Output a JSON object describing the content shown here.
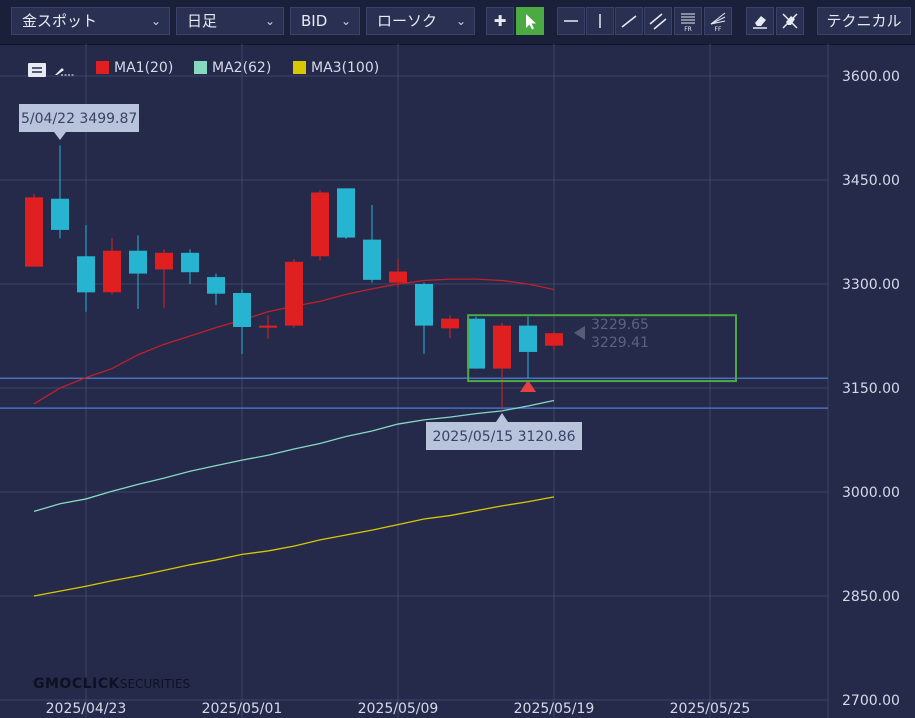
{
  "toolbar": {
    "symbol": "金スポット",
    "timeframe": "日足",
    "price_type": "BID",
    "chart_type": "ローソク",
    "technical_label": "テクニカル",
    "draw_labels": {
      "fr": "FR",
      "ff": "FF"
    }
  },
  "legend": [
    {
      "label": "MA1(20)",
      "color": "#e02020"
    },
    {
      "label": "MA2(62)",
      "color": "#86d9c0"
    },
    {
      "label": "MA3(100)",
      "color": "#d8c800"
    }
  ],
  "watermark": {
    "brand": "GMOCLICK",
    "suffix": "SECURITIES"
  },
  "colors": {
    "background": "#252a4a",
    "bull": "#e02020",
    "bear": "#27b4d1",
    "selection": "#4caa43",
    "ma1": "#c0202a",
    "ma2": "#86d9c0",
    "ma3": "#d8c800"
  },
  "chart_data": {
    "type": "candlestick",
    "yticks": [
      {
        "v": 3600,
        "label": "3600.00"
      },
      {
        "v": 3450,
        "label": "3450.00"
      },
      {
        "v": 3300,
        "label": "3300.00"
      },
      {
        "v": 3150,
        "label": "3150.00"
      },
      {
        "v": 3000,
        "label": "3000.00"
      },
      {
        "v": 2850,
        "label": "2850.00"
      },
      {
        "v": 2700,
        "label": "2700.00"
      }
    ],
    "xticks": [
      {
        "i": 2,
        "label": "2025/04/23"
      },
      {
        "i": 8,
        "label": "2025/05/01"
      },
      {
        "i": 14,
        "label": "2025/05/09"
      },
      {
        "i": 20,
        "label": "2025/05/19"
      },
      {
        "i": 26,
        "label": "2025/05/25"
      }
    ],
    "candles": [
      {
        "o": 3325,
        "h": 3430,
        "l": 3325,
        "c": 3425,
        "dir": "up"
      },
      {
        "o": 3423,
        "h": 3500,
        "l": 3366,
        "c": 3378,
        "dir": "down"
      },
      {
        "o": 3340,
        "h": 3385,
        "l": 3260,
        "c": 3288,
        "dir": "down"
      },
      {
        "o": 3288,
        "h": 3366,
        "l": 3285,
        "c": 3348,
        "dir": "up"
      },
      {
        "o": 3348,
        "h": 3370,
        "l": 3264,
        "c": 3315,
        "dir": "down"
      },
      {
        "o": 3321,
        "h": 3350,
        "l": 3265,
        "c": 3345,
        "dir": "up"
      },
      {
        "o": 3345,
        "h": 3350,
        "l": 3300,
        "c": 3317,
        "dir": "down"
      },
      {
        "o": 3310,
        "h": 3315,
        "l": 3270,
        "c": 3286,
        "dir": "down"
      },
      {
        "o": 3287,
        "h": 3292,
        "l": 3199,
        "c": 3238,
        "dir": "down"
      },
      {
        "o": 3237,
        "h": 3255,
        "l": 3221,
        "c": 3240,
        "dir": "up"
      },
      {
        "o": 3240,
        "h": 3336,
        "l": 3237,
        "c": 3332,
        "dir": "up"
      },
      {
        "o": 3340,
        "h": 3435,
        "l": 3334,
        "c": 3432,
        "dir": "up"
      },
      {
        "o": 3438,
        "h": 3438,
        "l": 3365,
        "c": 3367,
        "dir": "down"
      },
      {
        "o": 3364,
        "h": 3414,
        "l": 3302,
        "c": 3306,
        "dir": "down"
      },
      {
        "o": 3302,
        "h": 3336,
        "l": 3296,
        "c": 3318,
        "dir": "up"
      },
      {
        "o": 3300,
        "h": 3302,
        "l": 3199,
        "c": 3240,
        "dir": "down"
      },
      {
        "o": 3236,
        "h": 3255,
        "l": 3222,
        "c": 3250,
        "dir": "up"
      },
      {
        "o": 3250,
        "h": 3253,
        "l": 3178,
        "c": 3178,
        "dir": "down"
      },
      {
        "o": 3178,
        "h": 3244,
        "l": 3121,
        "c": 3240,
        "dir": "up"
      },
      {
        "o": 3240,
        "h": 3253,
        "l": 3164,
        "c": 3202,
        "dir": "down"
      },
      {
        "o": 3211,
        "h": 3231,
        "l": 3205,
        "c": 3229,
        "dir": "up"
      }
    ],
    "ma1": [
      3127,
      3150,
      3165,
      3178,
      3198,
      3213,
      3225,
      3237,
      3248,
      3260,
      3268,
      3275,
      3285,
      3293,
      3300,
      3305,
      3307,
      3307,
      3305,
      3300,
      3292
    ],
    "ma2": [
      2972,
      2983,
      2990,
      3001,
      3011,
      3020,
      3030,
      3038,
      3046,
      3053,
      3062,
      3070,
      3080,
      3088,
      3098,
      3104,
      3108,
      3113,
      3117,
      3124,
      3132
    ],
    "ma3": [
      2850,
      2857,
      2864,
      2872,
      2879,
      2887,
      2895,
      2902,
      2910,
      2915,
      2922,
      2931,
      2938,
      2945,
      2953,
      2961,
      2966,
      2973,
      2980,
      2986,
      2993
    ],
    "hlines": [
      3164,
      3121
    ],
    "callouts": {
      "high": {
        "i": 1,
        "v": 3500,
        "label": "5/04/22 3499.87"
      },
      "low": {
        "i": 18,
        "v": 3121,
        "label": "2025/05/15 3120.86"
      }
    },
    "price_labels": [
      "3229.65",
      "3229.41"
    ],
    "price_level": 3229.5,
    "selection": {
      "i0": 16.7,
      "i1": 27.0,
      "v_top": 3255,
      "v_bottom": 3160
    }
  }
}
